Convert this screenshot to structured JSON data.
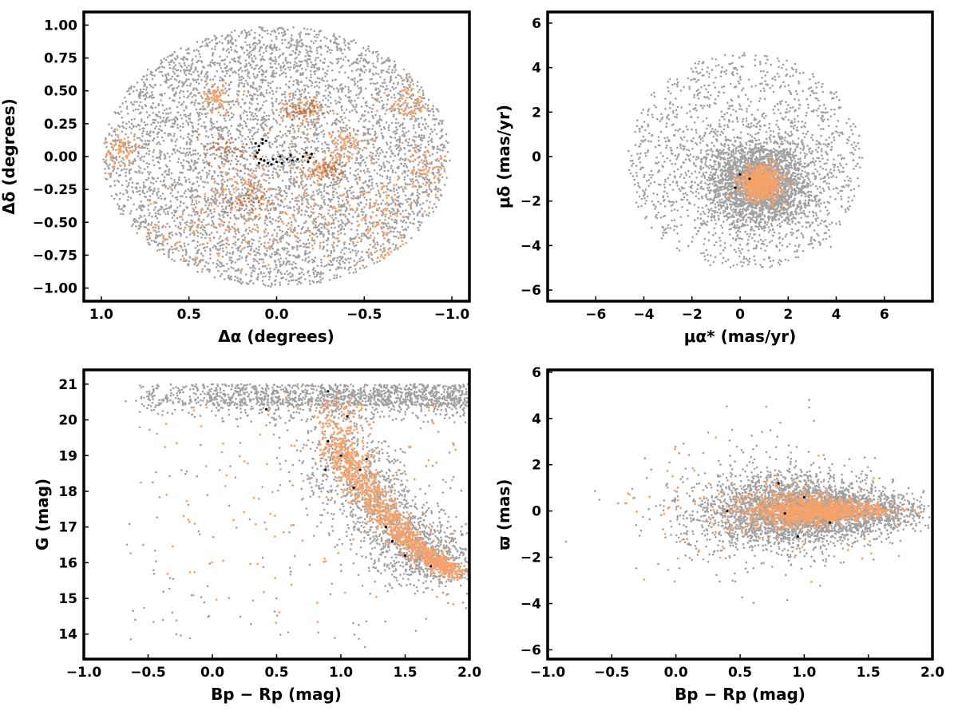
{
  "chart_data": [
    {
      "id": "position",
      "type": "scatter",
      "title": "",
      "xlabel": "Δα (degrees)",
      "ylabel": "Δδ (degrees)",
      "xlim": [
        1.1,
        -1.1
      ],
      "ylim": [
        -1.1,
        1.1
      ],
      "x_inverted": true,
      "xticks": [
        1.0,
        0.5,
        0.0,
        -0.5,
        -1.0
      ],
      "xtick_labels": [
        "1.0",
        "0.5",
        "0.0",
        "−0.5",
        "−1.0"
      ],
      "yticks": [
        -1.0,
        -0.75,
        -0.5,
        -0.25,
        0.0,
        0.25,
        0.5,
        0.75,
        1.0
      ],
      "ytick_labels": [
        "−1.00",
        "−0.75",
        "−0.50",
        "−0.25",
        "0.00",
        "0.25",
        "0.50",
        "0.75",
        "1.00"
      ],
      "grid": false,
      "colors": {
        "field": "#a0a0a0",
        "members_light": "#f5a26b",
        "members_dark": "#c07a4d",
        "core": "#000000"
      },
      "series_data": {
        "field": {
          "approx_count": 9000,
          "distribution": "uniform disk",
          "radius": 0.99
        },
        "members_clumps": [
          {
            "x": 0.35,
            "y": 0.45,
            "r": 0.1
          },
          {
            "x": -0.75,
            "y": 0.4,
            "r": 0.12
          },
          {
            "x": 0.9,
            "y": 0.05,
            "r": 0.1
          },
          {
            "x": -0.85,
            "y": -0.1,
            "r": 0.12
          },
          {
            "x": 0.5,
            "y": -0.6,
            "r": 0.25
          },
          {
            "x": 0.1,
            "y": -0.55,
            "r": 0.25
          },
          {
            "x": -0.3,
            "y": -0.5,
            "r": 0.25
          },
          {
            "x": -0.6,
            "y": -0.4,
            "r": 0.18
          },
          {
            "x": -0.7,
            "y": -0.8,
            "r": 0.12
          },
          {
            "x": 0.2,
            "y": -0.25,
            "r": 0.15
          },
          {
            "x": -0.15,
            "y": 0.35,
            "r": 0.12
          },
          {
            "x": -0.4,
            "y": 0.1,
            "r": 0.1
          },
          {
            "x": -0.25,
            "y": -0.1,
            "r": 0.1
          }
        ],
        "members_dark_clumps": [
          {
            "x": 0.3,
            "y": 0.05,
            "r": 0.12
          },
          {
            "x": 0.15,
            "y": -0.35,
            "r": 0.12
          },
          {
            "x": -0.15,
            "y": 0.35,
            "r": 0.08
          },
          {
            "x": -0.3,
            "y": -0.1,
            "r": 0.08
          }
        ],
        "core_points": [
          [
            0.12,
            0.1
          ],
          [
            0.1,
            0.08
          ],
          [
            0.08,
            0.1
          ],
          [
            0.1,
            0.05
          ],
          [
            0.12,
            0.0
          ],
          [
            0.09,
            -0.02
          ],
          [
            0.1,
            -0.05
          ],
          [
            0.07,
            -0.03
          ],
          [
            0.05,
            -0.05
          ],
          [
            0.03,
            -0.06
          ],
          [
            0.0,
            -0.04
          ],
          [
            -0.03,
            -0.05
          ],
          [
            -0.06,
            -0.02
          ],
          [
            -0.09,
            -0.03
          ],
          [
            -0.12,
            -0.02
          ],
          [
            -0.15,
            0.0
          ],
          [
            -0.17,
            0.03
          ],
          [
            -0.19,
            -0.01
          ],
          [
            -0.2,
            0.02
          ],
          [
            -0.18,
            -0.04
          ],
          [
            0.06,
            0.12
          ],
          [
            0.08,
            0.13
          ],
          [
            -0.08,
            0.01
          ],
          [
            0.02,
            -0.02
          ],
          [
            -0.02,
            0.0
          ],
          [
            0.11,
            0.03
          ]
        ]
      }
    },
    {
      "id": "proper-motion",
      "type": "scatter",
      "title": "",
      "xlabel": "μα* (mas/yr)",
      "ylabel": "μδ (mas/yr)",
      "xlim": [
        -8,
        8
      ],
      "ylim": [
        -6.5,
        6.5
      ],
      "xticks": [
        -6,
        -4,
        -2,
        0,
        2,
        4,
        6
      ],
      "xtick_labels": [
        "−6",
        "−4",
        "−2",
        "0",
        "2",
        "4",
        "6"
      ],
      "yticks": [
        -6,
        -4,
        -2,
        0,
        2,
        4,
        6
      ],
      "ytick_labels": [
        "−6",
        "−4",
        "−2",
        "0",
        "2",
        "4",
        "6"
      ],
      "grid": false,
      "colors": {
        "field": "#a0a0a0",
        "members": "#f5a26b",
        "core": "#000000"
      },
      "series_data": {
        "field_disk": {
          "center": [
            0.2,
            -0.2
          ],
          "radius": 4.9,
          "approx_count": 2800
        },
        "field_core": {
          "center": [
            0.8,
            -1.2
          ],
          "sigma": 1.0,
          "approx_count": 4200
        },
        "members": {
          "center": [
            0.9,
            -1.2
          ],
          "sigma": 0.38,
          "approx_count": 1100
        },
        "core_points": [
          [
            0.0,
            -0.8
          ],
          [
            0.4,
            -1.0
          ],
          [
            -0.2,
            -1.4
          ]
        ]
      }
    },
    {
      "id": "cmd",
      "type": "scatter",
      "title": "",
      "xlabel": "Bp − Rp (mag)",
      "ylabel": "G (mag)",
      "xlim": [
        -1.0,
        2.0
      ],
      "ylim": [
        13.3,
        21.4
      ],
      "y_inverted": false,
      "xticks": [
        -1.0,
        -0.5,
        0.0,
        0.5,
        1.0,
        1.5,
        2.0
      ],
      "xtick_labels": [
        "−1.0",
        "−0.5",
        "0.0",
        "0.5",
        "1.0",
        "1.5",
        "2.0"
      ],
      "yticks": [
        14,
        15,
        16,
        17,
        18,
        19,
        20,
        21
      ],
      "ytick_labels": [
        "14",
        "15",
        "16",
        "17",
        "18",
        "19",
        "20",
        "21"
      ],
      "grid": false,
      "colors": {
        "field": "#a0a0a0",
        "members": "#f5a26b",
        "core": "#000000"
      },
      "series_data": {
        "sequence_ridge": [
          [
            0.95,
            20.6
          ],
          [
            1.0,
            19.3
          ],
          [
            1.05,
            18.8
          ],
          [
            1.15,
            18.2
          ],
          [
            1.3,
            17.5
          ],
          [
            1.45,
            16.9
          ],
          [
            1.6,
            16.4
          ],
          [
            1.75,
            16.0
          ],
          [
            1.9,
            15.7
          ]
        ],
        "faint_band": {
          "g_range": [
            20.4,
            21.0
          ],
          "color_range": [
            -0.6,
            2.0
          ]
        },
        "core_points": [
          [
            0.42,
            20.3
          ],
          [
            0.9,
            20.8
          ],
          [
            1.05,
            20.1
          ],
          [
            0.9,
            19.4
          ],
          [
            0.88,
            18.6
          ],
          [
            1.1,
            18.1
          ],
          [
            1.2,
            18.9
          ],
          [
            1.35,
            17.0
          ],
          [
            1.4,
            16.6
          ],
          [
            1.5,
            16.2
          ],
          [
            1.7,
            15.9
          ],
          [
            1.0,
            19.0
          ],
          [
            1.15,
            18.6
          ]
        ]
      }
    },
    {
      "id": "parallax",
      "type": "scatter",
      "title": "",
      "xlabel": "Bp − Rp (mag)",
      "ylabel": "ϖ (mas)",
      "xlim": [
        -1.0,
        2.0
      ],
      "ylim": [
        -6.4,
        6.1
      ],
      "xticks": [
        -1.0,
        -0.5,
        0.0,
        0.5,
        1.0,
        1.5,
        2.0
      ],
      "xtick_labels": [
        "−1.0",
        "−0.5",
        "0.0",
        "0.5",
        "1.0",
        "1.5",
        "2.0"
      ],
      "yticks": [
        -6,
        -4,
        -2,
        0,
        2,
        4,
        6
      ],
      "ytick_labels": [
        "−6",
        "−4",
        "−2",
        "0",
        "2",
        "4",
        "6"
      ],
      "grid": false,
      "colors": {
        "field": "#a0a0a0",
        "members": "#f5a26b",
        "core": "#000000"
      },
      "series_data": {
        "field_center": [
          1.0,
          0.0
        ],
        "field_spread": {
          "color_sigma": 0.45,
          "parallax_sigma_blue": 1.2,
          "parallax_sigma_red": 0.4
        },
        "members_center": [
          1.05,
          0.0
        ],
        "core_points": [
          [
            0.4,
            0.0
          ],
          [
            0.8,
            1.2
          ],
          [
            0.85,
            -0.1
          ],
          [
            1.0,
            0.6
          ],
          [
            1.2,
            -0.5
          ],
          [
            0.95,
            -1.1
          ]
        ]
      }
    }
  ]
}
